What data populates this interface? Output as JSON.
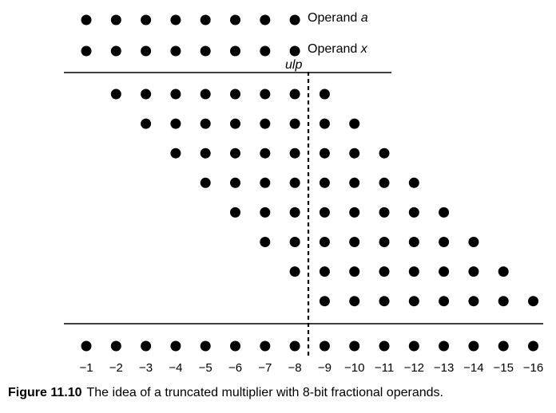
{
  "labels": {
    "operand_a_prefix": "Operand ",
    "operand_a_var": "a",
    "operand_x_prefix": "Operand ",
    "operand_x_var": "x",
    "ulp": "ulp"
  },
  "operand_positions": [
    -1,
    -2,
    -3,
    -4,
    -5,
    -6,
    -7,
    -8
  ],
  "partial_product_rows": [
    {
      "from": -2,
      "to": -9
    },
    {
      "from": -3,
      "to": -10
    },
    {
      "from": -4,
      "to": -11
    },
    {
      "from": -5,
      "to": -12
    },
    {
      "from": -6,
      "to": -13
    },
    {
      "from": -7,
      "to": -14
    },
    {
      "from": -8,
      "to": -15
    },
    {
      "from": -9,
      "to": -16
    }
  ],
  "result_positions": [
    -1,
    -2,
    -3,
    -4,
    -5,
    -6,
    -7,
    -8,
    -9,
    -10,
    -11,
    -12,
    -13,
    -14,
    -15,
    -16
  ],
  "position_labels": [
    "−1",
    "−2",
    "−3",
    "−4",
    "−5",
    "−6",
    "−7",
    "−8",
    "−9",
    "−10",
    "−11",
    "−12",
    "−13",
    "−14",
    "−15",
    "−16"
  ],
  "caption": {
    "number": "Figure 11.10",
    "text": "The idea of a truncated multiplier with 8-bit fractional operands."
  }
}
